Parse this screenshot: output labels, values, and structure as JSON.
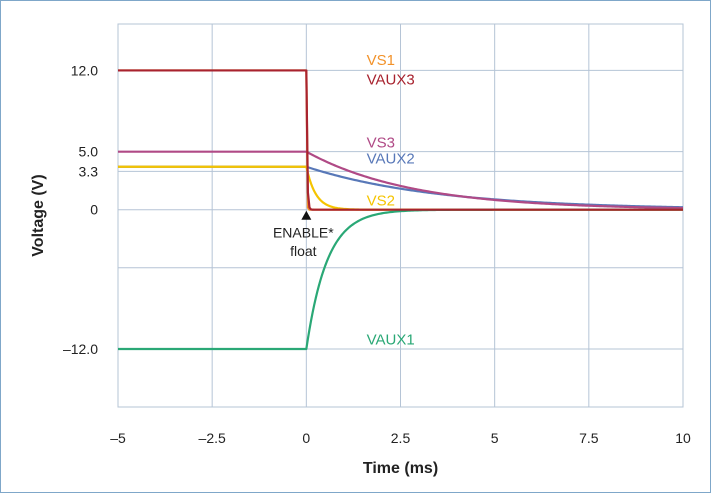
{
  "chart_data": {
    "type": "line",
    "xlabel": "Time (ms)",
    "ylabel": "Voltage (V)",
    "xlim": [
      -5,
      10
    ],
    "ylim": [
      -17,
      16
    ],
    "x_ticks": [
      {
        "value": -5,
        "label": "–5"
      },
      {
        "value": -2.5,
        "label": "–2.5"
      },
      {
        "value": 0,
        "label": "0"
      },
      {
        "value": 2.5,
        "label": "2.5"
      },
      {
        "value": 5,
        "label": "5"
      },
      {
        "value": 7.5,
        "label": "7.5"
      },
      {
        "value": 10,
        "label": "10"
      }
    ],
    "y_ticks": [
      {
        "value": 12,
        "label": "12.0"
      },
      {
        "value": 5,
        "label": "5.0"
      },
      {
        "value": 3.3,
        "label": "3.3"
      },
      {
        "value": 0,
        "label": "0"
      },
      {
        "value": -12,
        "label": "–12.0"
      }
    ],
    "y_grid": [
      12,
      5,
      3.3,
      0,
      -5,
      -12,
      -17
    ],
    "x_grid": [
      -5,
      -2.5,
      0,
      2.5,
      5,
      7.5,
      10
    ],
    "grid": true,
    "series": [
      {
        "name": "VS1",
        "color": "#f2922a",
        "initial": 12,
        "tau": 0.01,
        "label_at": [
          1.6,
          12.9
        ]
      },
      {
        "name": "VAUX3",
        "color": "#a8232f",
        "initial": 12,
        "tau": 0.02,
        "label_at": [
          1.6,
          11.2
        ]
      },
      {
        "name": "VS3",
        "color": "#b04a86",
        "initial": 5,
        "tau": 2.8,
        "label_at": [
          1.6,
          5.8
        ]
      },
      {
        "name": "VAUX2",
        "color": "#5878b8",
        "initial": 3.7,
        "tau": 3.5,
        "label_at": [
          1.6,
          4.4
        ]
      },
      {
        "name": "VS2",
        "color": "#f5c400",
        "initial": 3.7,
        "tau": 0.25,
        "label_at": [
          1.6,
          0.8
        ]
      },
      {
        "name": "VAUX1",
        "color": "#2aa876",
        "initial": -12,
        "tau": 0.55,
        "label_at": [
          1.6,
          -11.2
        ]
      }
    ],
    "annotations": [
      {
        "text": "ENABLE*",
        "x": 0,
        "y": -1.6
      },
      {
        "text": "float",
        "x": 0,
        "y": -3.2
      }
    ]
  }
}
